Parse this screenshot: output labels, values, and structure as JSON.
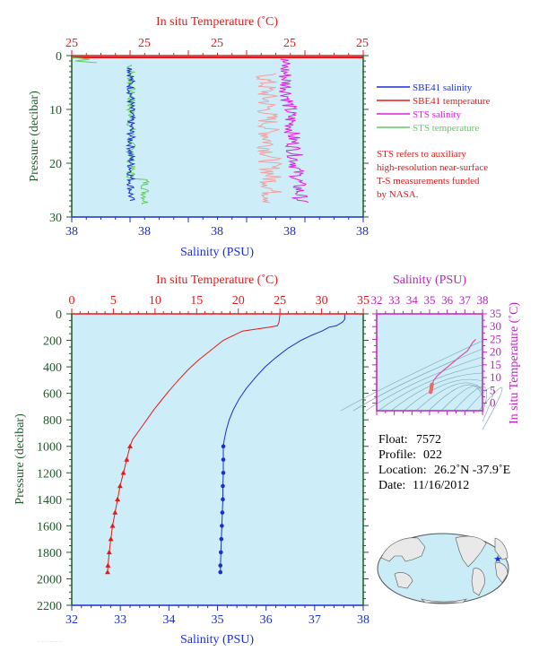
{
  "top_panel": {
    "top_axis_title": "In situ Temperature (˚C)",
    "bottom_axis_title": "Salinity (PSU)",
    "left_axis_title": "Pressure (decibar)",
    "top_ticks": [
      "25",
      "25",
      "25",
      "25",
      "25"
    ],
    "bottom_ticks": [
      "38",
      "38",
      "38",
      "38",
      "38"
    ],
    "left_ticks": [
      "0",
      "10",
      "20",
      "30"
    ]
  },
  "legend": {
    "items": [
      "SBE41 salinity",
      "SBE41 temperature",
      "STS salinity",
      "STS temperature"
    ],
    "colors": [
      "#1a2fd0",
      "#e81818",
      "#e020e0",
      "#60cc60"
    ],
    "note": [
      "STS refers to auxiliary",
      "high-resolution near-surface",
      "T-S measurements funded",
      "by NASA."
    ]
  },
  "main_panel": {
    "top_axis_title": "In situ Temperature (˚C)",
    "bottom_axis_title": "Salinity (PSU)",
    "left_axis_title": "Pressure (decibar)",
    "top_ticks": [
      "0",
      "5",
      "10",
      "15",
      "20",
      "25",
      "30",
      "35"
    ],
    "bottom_ticks": [
      "32",
      "33",
      "34",
      "35",
      "36",
      "37",
      "38"
    ],
    "left_ticks": [
      "0",
      "200",
      "400",
      "600",
      "800",
      "1000",
      "1200",
      "1400",
      "1600",
      "1800",
      "2000",
      "2200"
    ]
  },
  "ts_panel": {
    "top_axis_title": "Salinity (PSU)",
    "right_axis_title": "In situ Temperature (˚C)",
    "top_ticks": [
      "32",
      "33",
      "34",
      "35",
      "36",
      "37",
      "38"
    ],
    "right_ticks": [
      "0",
      "5",
      "10",
      "15",
      "20",
      "25",
      "30",
      "35"
    ]
  },
  "info": {
    "float_label": "Float:",
    "float_value": "7572",
    "profile_label": "Profile:",
    "profile_value": "022",
    "location_label": "Location:",
    "location_value": "26.2˚N  -37.9˚E",
    "date_label": "Date:",
    "date_value": "11/16/2012"
  },
  "colors": {
    "plot_bg": "#cdeef8",
    "temperature_axis": "#e81818",
    "salinity_axis": "#1a2fd0",
    "pressure_axis": "#1e5a2a",
    "ts_axis": "#c020c0"
  },
  "chart_data": [
    {
      "type": "line",
      "title": "",
      "xlabel": "Salinity (PSU)",
      "x2label": "In situ Temperature (˚C)",
      "ylabel": "Pressure (decibar)",
      "xlim": [
        32,
        38
      ],
      "x2lim": [
        0,
        35
      ],
      "ylim": [
        2200,
        0
      ],
      "series": [
        {
          "name": "Salinity",
          "axis": "salinity",
          "pressure": [
            5,
            40,
            60,
            90,
            100,
            130,
            160,
            200,
            260,
            330,
            400,
            480,
            560,
            640,
            720,
            800,
            880,
            950,
            1000,
            1100,
            1200,
            1300,
            1400,
            1500,
            1600,
            1700,
            1800,
            1900,
            1950
          ],
          "values": [
            37.62,
            37.62,
            37.58,
            37.45,
            37.3,
            37.15,
            36.95,
            36.72,
            36.45,
            36.2,
            35.98,
            35.78,
            35.6,
            35.45,
            35.33,
            35.24,
            35.18,
            35.14,
            35.12,
            35.12,
            35.12,
            35.11,
            35.11,
            35.1,
            35.09,
            35.08,
            35.07,
            35.06,
            35.06
          ],
          "markers_from": 1000
        },
        {
          "name": "Temperature",
          "axis": "temperature",
          "pressure": [
            5,
            60,
            90,
            100,
            130,
            200,
            280,
            350,
            420,
            500,
            580,
            650,
            720,
            800,
            880,
            950,
            1000,
            1100,
            1200,
            1300,
            1400,
            1500,
            1600,
            1700,
            1800,
            1900,
            1950
          ],
          "values": [
            25.0,
            24.9,
            24.7,
            23.8,
            20.5,
            18.2,
            16.6,
            15.2,
            14.0,
            12.8,
            11.7,
            10.8,
            9.9,
            9.0,
            8.1,
            7.3,
            7.0,
            6.6,
            6.2,
            5.8,
            5.5,
            5.2,
            4.9,
            4.7,
            4.5,
            4.35,
            4.3
          ],
          "markers_from": 1000
        }
      ]
    },
    {
      "type": "scatter",
      "title": "",
      "xlabel": "Salinity (PSU)",
      "ylabel": "In situ Temperature (˚C)",
      "xlim": [
        32,
        38
      ],
      "ylim": [
        -3,
        35
      ],
      "series": [
        {
          "name": "T-S",
          "x": [
            37.62,
            37.45,
            37.15,
            36.72,
            36.2,
            35.78,
            35.45,
            35.24,
            35.14,
            35.12,
            35.11,
            35.1,
            35.08,
            35.06
          ],
          "y": [
            25.0,
            23.8,
            20.5,
            18.2,
            15.2,
            12.8,
            10.8,
            9.0,
            7.3,
            7.0,
            6.2,
            5.5,
            4.9,
            4.3
          ]
        }
      ]
    }
  ]
}
